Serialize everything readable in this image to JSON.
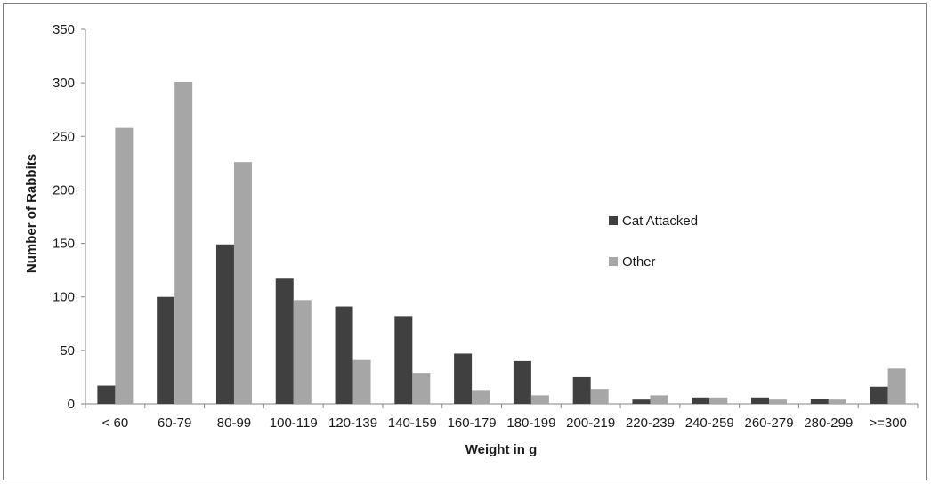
{
  "chart_data": {
    "type": "bar",
    "xlabel": "Weight in g",
    "ylabel": "Number of Rabbits",
    "ylim": [
      0,
      350
    ],
    "yticks": [
      "0",
      "50",
      "100",
      "150",
      "200",
      "250",
      "300",
      "350"
    ],
    "categories": [
      "< 60",
      "60-79",
      "80-99",
      "100-119",
      "120-139",
      "140-159",
      "160-179",
      "180-199",
      "200-219",
      "220-239",
      "240-259",
      "260-279",
      "280-299",
      ">=300"
    ],
    "series": [
      {
        "name": "Cat Attacked",
        "color": "#404040",
        "values": [
          17,
          100,
          149,
          117,
          91,
          82,
          47,
          40,
          25,
          4,
          6,
          6,
          5,
          16
        ]
      },
      {
        "name": "Other",
        "color": "#a6a6a6",
        "values": [
          258,
          301,
          226,
          97,
          41,
          29,
          13,
          8,
          14,
          8,
          6,
          4,
          4,
          33
        ]
      }
    ],
    "grid": false,
    "legend_position": "right"
  }
}
